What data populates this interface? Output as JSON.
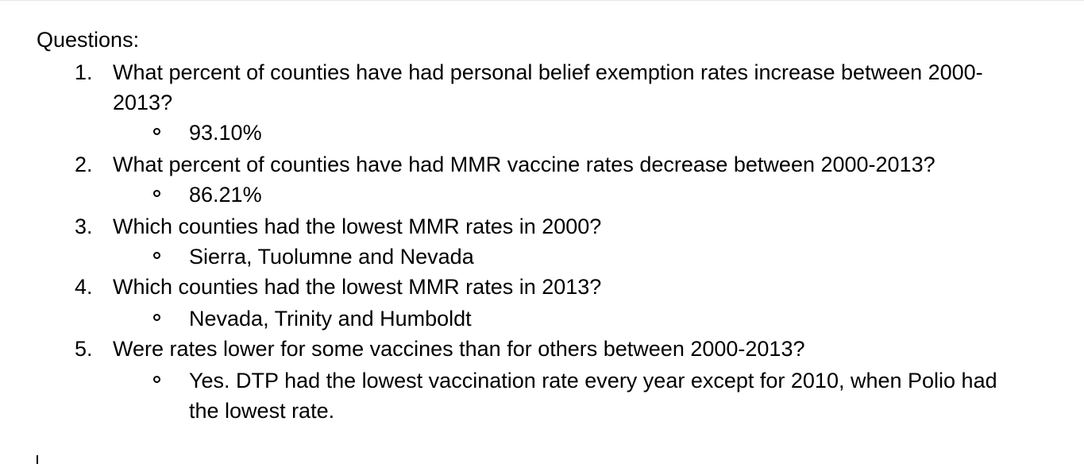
{
  "heading": "Questions:",
  "questions": [
    {
      "number": "1.",
      "text": "What percent of counties have had personal belief exemption rates increase between 2000-2013?",
      "answer": "93.10%"
    },
    {
      "number": "2.",
      "text": "What percent of counties have had MMR vaccine rates decrease between 2000-2013?",
      "answer": "86.21%"
    },
    {
      "number": "3.",
      "text": "Which counties had the lowest MMR rates in 2000?",
      "answer": "Sierra, Tuolumne and Nevada"
    },
    {
      "number": "4.",
      "text": "Which counties had the lowest MMR rates in 2013?",
      "answer": "Nevada, Trinity and Humboldt"
    },
    {
      "number": "5.",
      "text": "Were rates lower for some vaccines than for others between 2000-2013?",
      "answer": "Yes. DTP had the lowest vaccination rate every year except for 2010, when Polio had the lowest rate."
    }
  ]
}
